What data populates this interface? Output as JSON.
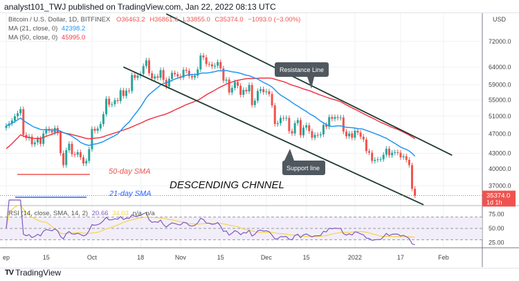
{
  "header": {
    "published": "analyst101_TWJ published on TradingView.com, Jan 22, 2022 08:13 UTC"
  },
  "legend": {
    "symbol": "Bitcoin / U.S. Dollar, 1D, BITFINEX",
    "o": "O36463.2",
    "h": "H36861.6",
    "l": "L33855.0",
    "c": "C35374.0",
    "chg": "−1093.0 (−3.00%)",
    "ma21_label": "MA (21, close, 0)",
    "ma21_value": "42398.2",
    "ma50_label": "MA (50, close, 0)",
    "ma50_value": "45995.0",
    "rsi_label": "RSI (14, close, SMA, 14, 2)",
    "rsi_value": "20.66",
    "rsi_sma_value": "34.03",
    "na1": "n/a",
    "na2": "n/a"
  },
  "colors": {
    "up": "#26a69a",
    "down": "#ef5350",
    "ma21": "#2196f3",
    "ma50": "#f23645",
    "rsi": "#7e57c2",
    "rsi_sma": "#f5d547",
    "trend": "#1e3a2e"
  },
  "chart_data": {
    "type": "candlestick",
    "price_scale": "log",
    "currency": "USD",
    "start_date": "2021-09-01",
    "closes": [
      48800,
      49300,
      50000,
      51000,
      51700,
      52700,
      46800,
      46100,
      46400,
      44800,
      45200,
      46000,
      44900,
      47100,
      48100,
      47700,
      47300,
      48300,
      47200,
      43000,
      40700,
      43600,
      44900,
      42800,
      42700,
      43200,
      42200,
      41000,
      41500,
      43800,
      48100,
      47700,
      48200,
      49200,
      51500,
      55300,
      53800,
      53900,
      54900,
      54700,
      57500,
      56000,
      57400,
      57300,
      61700,
      60900,
      61500,
      62000,
      64300,
      66000,
      62200,
      60700,
      61300,
      60900,
      63100,
      60300,
      58500,
      60600,
      62300,
      61900,
      61300,
      61000,
      63200,
      62900,
      61400,
      61000,
      61500,
      63300,
      67500,
      66900,
      64900,
      64800,
      64200,
      64400,
      65500,
      63600,
      60100,
      60400,
      56900,
      58100,
      59700,
      58700,
      56300,
      57600,
      57200,
      58900,
      53700,
      54800,
      57300,
      57800,
      57000,
      57200,
      56500,
      53600,
      49200,
      49400,
      50600,
      50500,
      50600,
      47600,
      47100,
      49400,
      50100,
      46700,
      48400,
      48900,
      47600,
      46200,
      46800,
      46700,
      46900,
      49000,
      48600,
      50800,
      50400,
      50800,
      50600,
      50700,
      47500,
      46500,
      47100,
      46200,
      47700,
      47300,
      46400,
      45800,
      43400,
      43100,
      41500,
      41700,
      41800,
      41800,
      42700,
      43900,
      42600,
      43100,
      43200,
      43100,
      42200,
      42400,
      41700,
      40700,
      36500,
      35374
    ],
    "price_ticks": [
      "72000.0",
      "64000.0",
      "59000.0",
      "55000.0",
      "51000.0",
      "47000.0",
      "43000.0",
      "40000.0",
      "37000.0"
    ],
    "last_price": "35374.0",
    "countdown": "1d 1h",
    "rsi_ticks": [
      "75.00",
      "50.00",
      "25.00"
    ],
    "x_ticks": [
      {
        "label": "ep",
        "date": "2021-09-01"
      },
      {
        "label": "15",
        "date": "2021-09-15"
      },
      {
        "label": "Oct",
        "date": "2021-10-01"
      },
      {
        "label": "18",
        "date": "2021-10-18"
      },
      {
        "label": "Nov",
        "date": "2021-11-01"
      },
      {
        "label": "15",
        "date": "2021-11-15"
      },
      {
        "label": "Dec",
        "date": "2021-12-01"
      },
      {
        "label": "15",
        "date": "2021-12-15"
      },
      {
        "label": "2022",
        "date": "2022-01-01"
      },
      {
        "label": "17",
        "date": "2022-01-17"
      },
      {
        "label": "Feb",
        "date": "2022-02-01"
      }
    ],
    "trendlines": [
      {
        "name": "resistance",
        "from": [
          "2021-10-27",
          81800
        ],
        "to": [
          "2022-02-04",
          42600
        ]
      },
      {
        "name": "support",
        "from": [
          "2021-10-12",
          64000
        ],
        "to": [
          "2022-01-25",
          33900
        ]
      }
    ],
    "annotations": {
      "resistance": "Resistance Line",
      "support": "Support line",
      "sma50": "50-day SMA",
      "sma21": "21-day SMA",
      "title": "DESCENDING CHNNEL"
    }
  },
  "footer": {
    "logo": "TradingView"
  }
}
